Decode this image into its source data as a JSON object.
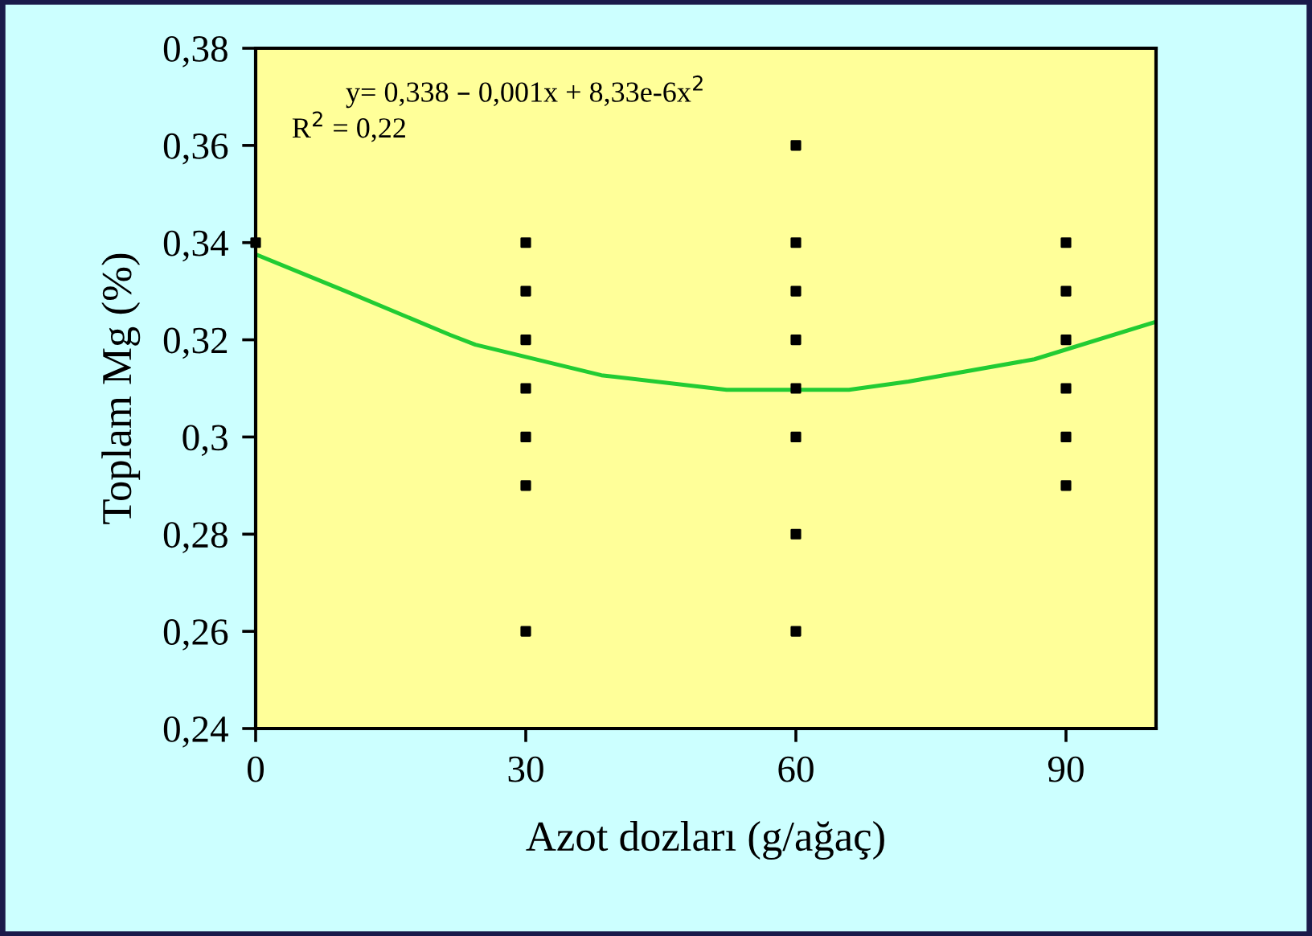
{
  "chart_data": {
    "type": "scatter",
    "xlabel": "Azot dozları (g/ağaç)",
    "ylabel": "Toplam Mg (%)",
    "annotations": [
      "y= 0,338 – 0,001x + 8,33e-6x$^{2}$",
      "R$^{2}$ = 0,22"
    ],
    "xlim": [
      0,
      100
    ],
    "xticks": [
      0,
      30,
      60,
      90
    ],
    "ylim": [
      0.24,
      0.38
    ],
    "yticks": [
      {
        "value": 0.24,
        "label": "0,24"
      },
      {
        "value": 0.26,
        "label": "0,26"
      },
      {
        "value": 0.28,
        "label": "0,28"
      },
      {
        "value": 0.3,
        "label": "0,3"
      },
      {
        "value": 0.32,
        "label": "0,32"
      },
      {
        "value": 0.34,
        "label": "0,34"
      },
      {
        "value": 0.36,
        "label": "0,36"
      },
      {
        "value": 0.38,
        "label": "0,38"
      }
    ],
    "grid": false,
    "legend": false,
    "series": [
      {
        "color": "#000000",
        "marker": "square",
        "x": [
          0,
          30,
          30,
          30,
          30,
          30,
          30,
          30,
          60,
          60,
          60,
          60,
          60,
          60,
          60,
          60,
          90,
          90,
          90,
          90,
          90,
          90
        ],
        "values": [
          0.34,
          0.34,
          0.33,
          0.32,
          0.31,
          0.3,
          0.29,
          0.26,
          0.36,
          0.34,
          0.33,
          0.32,
          0.31,
          0.3,
          0.28,
          0.26,
          0.34,
          0.33,
          0.32,
          0.31,
          0.3,
          0.29
        ]
      },
      {
        "type": "line",
        "color": "#22cc33",
        "marker": "none",
        "line_style": "solid",
        "x": [
          0,
          10,
          21.6,
          24.4,
          38.4,
          52.3,
          65.9,
          72.5,
          86.5,
          100
        ],
        "values": [
          0.3376,
          0.33,
          0.321,
          0.319,
          0.3127,
          0.3097,
          0.3097,
          0.3114,
          0.316,
          0.3237
        ]
      }
    ]
  }
}
